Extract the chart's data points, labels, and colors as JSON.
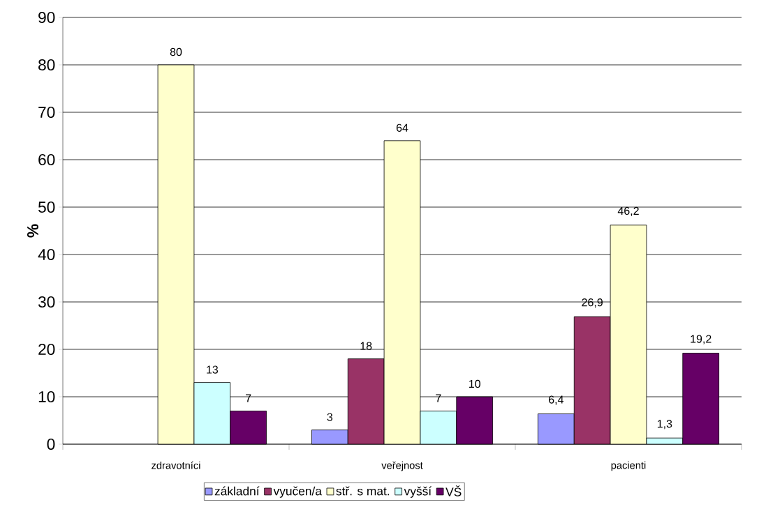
{
  "chart_data": {
    "type": "bar",
    "ylabel": "%",
    "categories": [
      "zdravotníci",
      "veřejnost",
      "pacienti"
    ],
    "series": [
      {
        "name": "základní",
        "color": "#9999ff",
        "values": [
          null,
          3,
          6.4
        ],
        "value_labels": [
          null,
          "3",
          "6,4"
        ]
      },
      {
        "name": "vyučen/a",
        "color": "#993366",
        "values": [
          null,
          18,
          26.9
        ],
        "value_labels": [
          null,
          "18",
          "26,9"
        ]
      },
      {
        "name": "stř. s mat.",
        "color": "#ffffcc",
        "values": [
          80,
          64,
          46.2
        ],
        "value_labels": [
          "80",
          "64",
          "46,2"
        ]
      },
      {
        "name": "vyšší",
        "color": "#ccffff",
        "values": [
          13,
          7,
          1.3
        ],
        "value_labels": [
          "13",
          "7",
          "1,3"
        ]
      },
      {
        "name": "VŠ",
        "color": "#660066",
        "values": [
          7,
          10,
          19.2
        ],
        "value_labels": [
          "7",
          "10",
          "19,2"
        ]
      }
    ],
    "ylim": [
      0,
      90
    ],
    "yticks": [
      0,
      10,
      20,
      30,
      40,
      50,
      60,
      70,
      80,
      90
    ],
    "grid": "y",
    "legend": "bottom"
  }
}
